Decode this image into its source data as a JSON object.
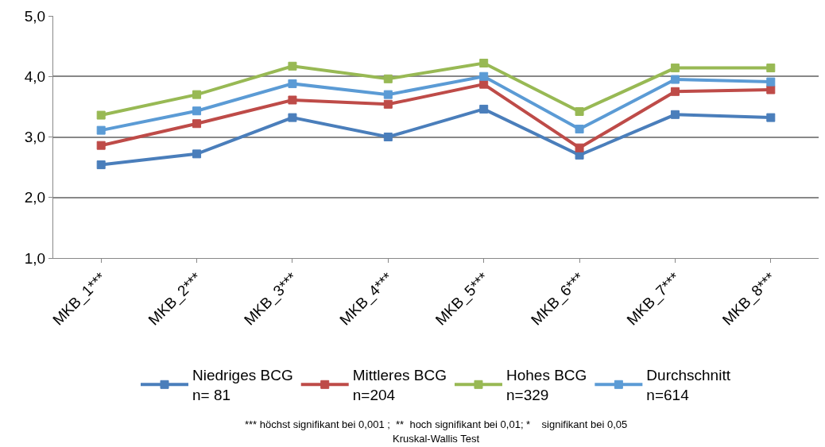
{
  "chart_data": {
    "type": "line",
    "categories": [
      "MKB_1***",
      "MKB_2***",
      "MKB_3***",
      "MKB_4***",
      "MKB_5***",
      "MKB_6***",
      "MKB_7***",
      "MKB_8***"
    ],
    "series": [
      {
        "name": "Niedriges BCG\nn= 81",
        "color": "#4a7ebb",
        "values": [
          2.54,
          2.72,
          3.32,
          3.0,
          3.46,
          2.7,
          3.37,
          3.32
        ]
      },
      {
        "name": "Mittleres BCG\nn=204",
        "color": "#be4b48",
        "values": [
          2.86,
          3.22,
          3.61,
          3.54,
          3.87,
          2.82,
          3.75,
          3.78
        ]
      },
      {
        "name": "Hohes BCG\nn=329",
        "color": "#98b954",
        "values": [
          3.36,
          3.7,
          4.17,
          3.96,
          4.22,
          3.42,
          4.14,
          4.14
        ]
      },
      {
        "name": "Durchschnitt\nn=614",
        "color": "#5b9bd5",
        "values": [
          3.11,
          3.43,
          3.88,
          3.7,
          4.0,
          3.13,
          3.95,
          3.91
        ]
      }
    ],
    "ylim": [
      1,
      5
    ],
    "yticks": [
      {
        "value": 1,
        "label": "1,0"
      },
      {
        "value": 2,
        "label": "2,0"
      },
      {
        "value": 3,
        "label": "3,0"
      },
      {
        "value": 4,
        "label": "4,0"
      },
      {
        "value": 5,
        "label": "5,0"
      }
    ],
    "grid": "y",
    "legend": "bottom",
    "marker": "square",
    "line_style": "solid",
    "annotations": [
      "*** höchst signifikant bei 0,001 ;  **  hoch signifikant bei 0,01; *    signifikant bei 0,05",
      "Kruskal-Wallis Test"
    ]
  }
}
